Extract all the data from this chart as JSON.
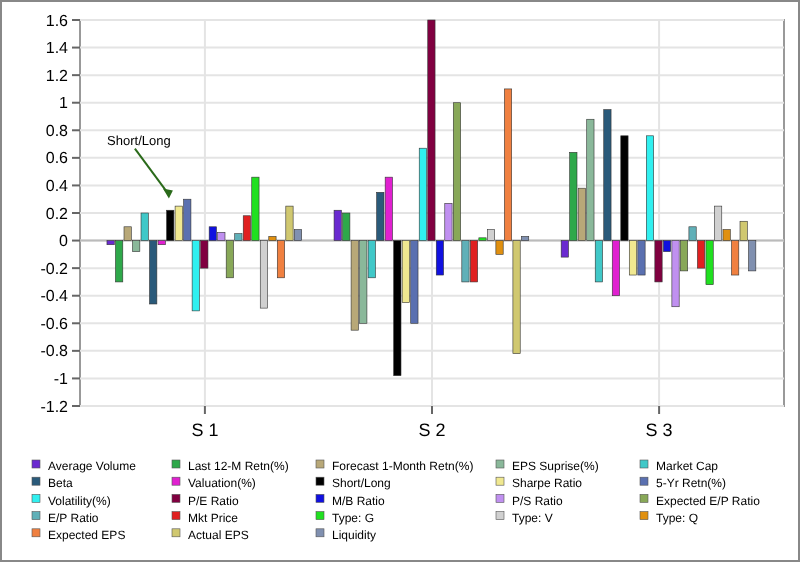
{
  "chart_data": {
    "type": "bar",
    "categories": [
      "S 1",
      "S 2",
      "S 3"
    ],
    "ylim": [
      -1.2,
      1.6
    ],
    "yticks": [
      -1.2,
      -1,
      -0.8,
      -0.6,
      -0.4,
      -0.2,
      0,
      0.2,
      0.4,
      0.6,
      0.8,
      1,
      1.2,
      1.4,
      1.6
    ],
    "grid": true,
    "legend": "bottom",
    "annotations": [
      "Short/Long"
    ],
    "series": [
      {
        "name": "Average Volume",
        "color": "#6a2ad0",
        "values": [
          -0.03,
          0.22,
          -0.12
        ]
      },
      {
        "name": "Last 12-M Retn(%)",
        "color": "#2ea84a",
        "values": [
          -0.3,
          0.2,
          0.64
        ]
      },
      {
        "name": "Forecast 1-Month Retn(%)",
        "color": "#b8a878",
        "values": [
          0.1,
          -0.65,
          0.38
        ]
      },
      {
        "name": "EPS Suprise(%)",
        "color": "#8ab89a",
        "values": [
          -0.08,
          -0.6,
          0.88
        ]
      },
      {
        "name": "Market Cap",
        "color": "#40c8c8",
        "values": [
          0.2,
          -0.27,
          -0.3
        ]
      },
      {
        "name": "Beta",
        "color": "#2a5a7a",
        "values": [
          -0.46,
          0.35,
          0.95
        ]
      },
      {
        "name": "Valuation(%)",
        "color": "#e020d0",
        "values": [
          -0.03,
          0.46,
          -0.4
        ]
      },
      {
        "name": "Short/Long",
        "color": "#000000",
        "values": [
          0.22,
          -0.98,
          0.76
        ]
      },
      {
        "name": "Sharpe Ratio",
        "color": "#f0e890",
        "values": [
          0.25,
          -0.45,
          -0.25
        ]
      },
      {
        "name": "5-Yr Retn(%)",
        "color": "#5a70b0",
        "values": [
          0.3,
          -0.6,
          -0.25
        ]
      },
      {
        "name": "Volatility(%)",
        "color": "#30f0f0",
        "values": [
          -0.51,
          0.67,
          0.76
        ]
      },
      {
        "name": "P/E Ratio",
        "color": "#800040",
        "values": [
          -0.2,
          1.6,
          -0.3
        ]
      },
      {
        "name": "M/B Ratio",
        "color": "#1010e0",
        "values": [
          0.1,
          -0.25,
          -0.08
        ]
      },
      {
        "name": "P/S Ratio",
        "color": "#c090f0",
        "values": [
          0.06,
          0.27,
          -0.48
        ]
      },
      {
        "name": "Expected E/P Ratio",
        "color": "#88a858",
        "values": [
          -0.27,
          1.0,
          -0.22
        ]
      },
      {
        "name": "E/P Ratio",
        "color": "#60b0b8",
        "values": [
          0.05,
          -0.3,
          0.1
        ]
      },
      {
        "name": "Mkt Price",
        "color": "#e02020",
        "values": [
          0.18,
          -0.3,
          -0.2
        ]
      },
      {
        "name": "Type: G",
        "color": "#20e020",
        "values": [
          0.46,
          0.02,
          -0.32
        ]
      },
      {
        "name": "Type: V",
        "color": "#d0d0d0",
        "values": [
          -0.49,
          0.08,
          0.25
        ]
      },
      {
        "name": "Type: Q",
        "color": "#e09010",
        "values": [
          0.03,
          -0.1,
          0.08
        ]
      },
      {
        "name": "Expected EPS",
        "color": "#f08040",
        "values": [
          -0.27,
          1.1,
          -0.25
        ]
      },
      {
        "name": "Actual EPS",
        "color": "#d0c870",
        "values": [
          0.25,
          -0.82,
          0.14
        ]
      },
      {
        "name": "Liquidity",
        "color": "#8090b0",
        "values": [
          0.08,
          0.03,
          -0.22
        ]
      }
    ]
  }
}
